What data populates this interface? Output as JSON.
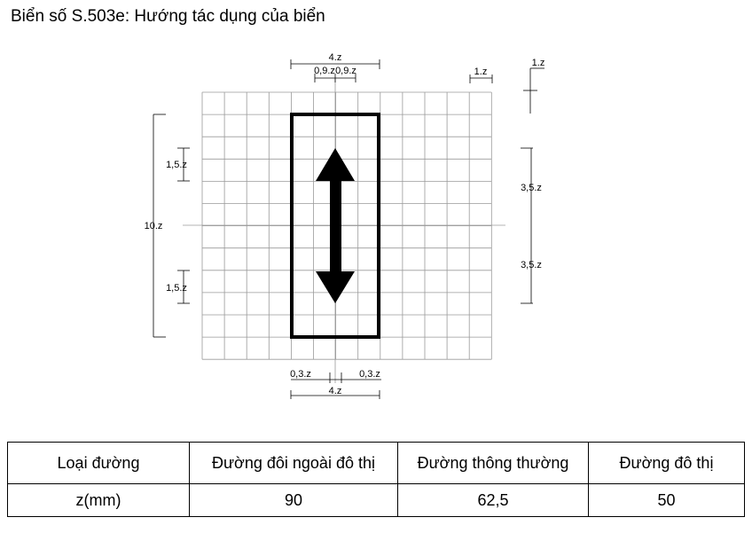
{
  "title": "Biển số S.503e: Hướng tác dụng của biển",
  "diagram": {
    "dims": {
      "top_width": "4.z",
      "half_left": "0,9.z",
      "half_right": "0,9.z",
      "cell": "1.z",
      "cell_vertical": "1.z",
      "upper_head": "1,5.z",
      "lower_head": "1,5.z",
      "height": "10.z",
      "right_upper": "3,5.z",
      "right_lower": "3,5.z",
      "shaft_left": "0,3.z",
      "shaft_right": "0,3.z",
      "bottom_width": "4.z"
    }
  },
  "table": {
    "headers": [
      "Loại đường",
      "Đường đôi ngoài đô thị",
      "Đường thông thường",
      "Đường đô thị"
    ],
    "row": [
      "z(mm)",
      "90",
      "62,5",
      "50"
    ]
  }
}
